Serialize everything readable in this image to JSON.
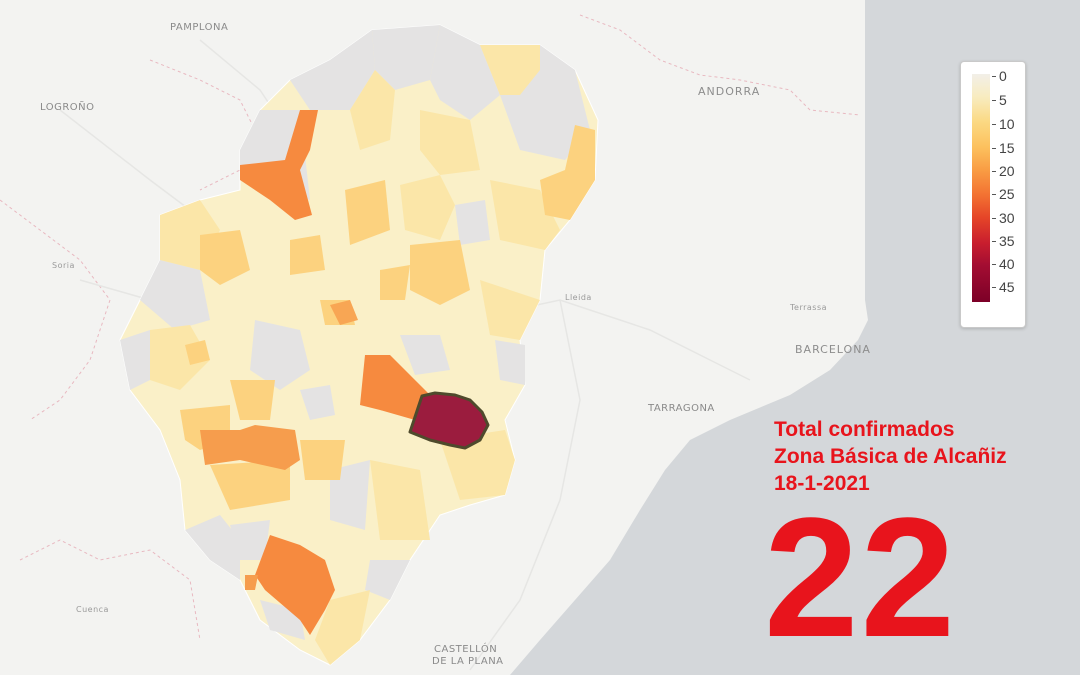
{
  "map": {
    "cities": {
      "pamplona": "PAMPLONA",
      "logrono": "LOGROÑO",
      "andorra": "ANDORRA",
      "soria": "Soria",
      "lleida": "Lleida",
      "terrassa": "Terrassa",
      "barcelona": "BARCELONA",
      "tarragona": "TARRAGONA",
      "cuenca": "Cuenca",
      "castellon_1": "CASTELLÓN",
      "castellon_2": "DE LA PLANA"
    },
    "highlighted_zone": "Alcañiz"
  },
  "legend": {
    "ticks": [
      "0",
      "5",
      "10",
      "15",
      "20",
      "25",
      "30",
      "35",
      "40",
      "45"
    ],
    "colors": [
      "#f2efe8",
      "#f8ecc0",
      "#fbd983",
      "#fcc15e",
      "#f99d44",
      "#f37232",
      "#e54528",
      "#c91e2e",
      "#a30d32",
      "#7c0027"
    ]
  },
  "caption": {
    "line1": "Total confirmados",
    "line2": "Zona Básica de Alcañiz",
    "line3": "18-1-2021",
    "value": "22"
  }
}
